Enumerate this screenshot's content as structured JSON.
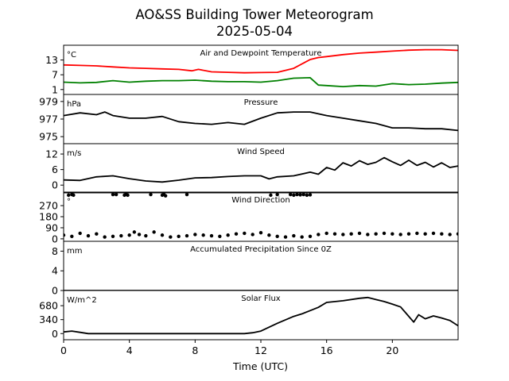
{
  "title_line1": "AO&SS Building Tower Meteorogram",
  "title_line2": "2025-05-04",
  "xlabel": "Time (UTC)",
  "x_ticks": [
    0,
    4,
    8,
    12,
    16,
    20
  ],
  "chart_data": [
    {
      "type": "line",
      "title": "Air and Dewpoint Temperature",
      "unit": "°C",
      "ylim": [
        -1,
        19
      ],
      "yticks": [
        1,
        7,
        13
      ],
      "xlim": [
        0,
        24
      ],
      "series": [
        {
          "color": "#ff0000",
          "x": [
            0,
            1,
            2,
            3,
            4,
            5,
            6,
            7,
            7.8,
            8.2,
            9,
            10,
            11,
            12,
            13,
            14,
            15,
            15.5,
            16,
            17,
            18,
            19,
            20,
            21,
            22,
            23,
            24
          ],
          "y": [
            11,
            10.8,
            10.6,
            10.2,
            9.8,
            9.6,
            9.4,
            9.2,
            8.6,
            9.2,
            8.2,
            8.0,
            7.8,
            7.9,
            8.0,
            9.6,
            13.2,
            14.0,
            14.4,
            15.2,
            15.8,
            16.2,
            16.6,
            17.0,
            17.2,
            17.2,
            16.9
          ]
        },
        {
          "color": "#008000",
          "x": [
            0,
            1,
            2,
            3,
            4,
            5,
            6,
            7,
            8,
            9,
            10,
            11,
            12,
            13,
            14,
            15,
            15.5,
            16,
            17,
            18,
            19,
            20,
            21,
            22,
            23,
            24
          ],
          "y": [
            4.0,
            3.7,
            3.9,
            4.6,
            4.0,
            4.4,
            4.6,
            4.6,
            4.8,
            4.4,
            4.2,
            4.2,
            4.0,
            4.6,
            5.6,
            5.8,
            2.8,
            2.6,
            2.2,
            2.6,
            2.4,
            3.4,
            3.0,
            3.2,
            3.6,
            3.9
          ]
        }
      ]
    },
    {
      "type": "line",
      "title": "Pressure",
      "unit": "hPa",
      "ylim": [
        974.2,
        979.8
      ],
      "yticks": [
        975,
        977,
        979
      ],
      "xlim": [
        0,
        24
      ],
      "series": [
        {
          "color": "#000000",
          "x": [
            0,
            1,
            2,
            2.5,
            3,
            4,
            5,
            6,
            7,
            8,
            9,
            10,
            11,
            12,
            13,
            14,
            15,
            16,
            17,
            18,
            19,
            20,
            21,
            22,
            23,
            24
          ],
          "y": [
            977.4,
            977.7,
            977.5,
            977.8,
            977.4,
            977.1,
            977.1,
            977.3,
            976.7,
            976.5,
            976.4,
            976.6,
            976.4,
            977.1,
            977.7,
            977.8,
            977.8,
            977.4,
            977.1,
            976.8,
            976.5,
            976.0,
            976.0,
            975.9,
            975.9,
            975.7
          ]
        }
      ]
    },
    {
      "type": "line",
      "title": "Wind Speed",
      "unit": "m/s",
      "ylim": [
        -3,
        16
      ],
      "yticks": [
        0,
        6,
        12
      ],
      "xlim": [
        0,
        24
      ],
      "series": [
        {
          "color": "#000000",
          "x": [
            0,
            1,
            2,
            3,
            4,
            5,
            6,
            7,
            8,
            9,
            10,
            11,
            12,
            12.5,
            13,
            14,
            15,
            15.5,
            16,
            16.5,
            17,
            17.5,
            18,
            18.5,
            19,
            19.5,
            20,
            20.5,
            21,
            21.5,
            22,
            22.5,
            23,
            23.5,
            24
          ],
          "y": [
            2.0,
            1.8,
            3.2,
            3.6,
            2.5,
            1.6,
            1.2,
            1.9,
            2.8,
            2.9,
            3.3,
            3.6,
            3.6,
            2.4,
            3.2,
            3.6,
            5.0,
            4.2,
            6.8,
            5.8,
            8.6,
            7.4,
            9.4,
            8.0,
            8.8,
            10.6,
            9.0,
            7.6,
            9.6,
            7.6,
            8.8,
            7.0,
            8.6,
            6.8,
            7.4
          ]
        }
      ]
    },
    {
      "type": "scatter",
      "title": "Wind Direction",
      "unit": "°",
      "ylim": [
        -20,
        380
      ],
      "yticks": [
        0,
        90,
        180,
        270
      ],
      "xlim": [
        0,
        24
      ],
      "series": [
        {
          "color": "#000000",
          "x": [
            0,
            0.5,
            1,
            1.5,
            2,
            2.5,
            3,
            3.5,
            4,
            4.3,
            4.6,
            5,
            5.5,
            6,
            6.5,
            7,
            7.5,
            8,
            8.5,
            9,
            9.5,
            10,
            10.5,
            11,
            11.5,
            12,
            12.5,
            13,
            13.5,
            14,
            14.5,
            15,
            15.5,
            16,
            16.5,
            17,
            17.5,
            18,
            18.5,
            19,
            19.5,
            20,
            20.5,
            21,
            21.5,
            22,
            22.5,
            23,
            23.5,
            24
          ],
          "y": [
            30,
            20,
            45,
            25,
            40,
            15,
            20,
            25,
            30,
            55,
            35,
            25,
            55,
            30,
            15,
            20,
            25,
            35,
            30,
            25,
            20,
            30,
            40,
            45,
            35,
            50,
            30,
            20,
            15,
            25,
            15,
            20,
            35,
            45,
            40,
            35,
            40,
            45,
            35,
            40,
            45,
            40,
            35,
            40,
            45,
            40,
            45,
            40,
            35,
            40
          ]
        },
        {
          "color": "#000000",
          "x": [
            0.3,
            0.5,
            0.6,
            3.0,
            3.2,
            3.7,
            3.8,
            3.9,
            5.3,
            6.0,
            6.1,
            6.2,
            7.5,
            12.6,
            13.0,
            13.8,
            14.0,
            14.2,
            14.4,
            14.6,
            14.8,
            15.0
          ],
          "y": [
            355,
            360,
            355,
            360,
            360,
            355,
            360,
            355,
            360,
            355,
            360,
            350,
            360,
            355,
            360,
            360,
            355,
            360,
            358,
            360,
            355,
            358
          ]
        }
      ]
    },
    {
      "type": "line",
      "title": "Accumulated Precipitation Since 0Z",
      "unit": "mm",
      "ylim": [
        0,
        10
      ],
      "yticks": [
        0,
        4,
        8
      ],
      "xlim": [
        0,
        24
      ],
      "series": [
        {
          "color": "#000000",
          "x": [
            0,
            24
          ],
          "y": [
            0,
            0
          ]
        }
      ]
    },
    {
      "type": "line",
      "title": "Solar Flux",
      "unit": "W/m^2",
      "ylim": [
        -150,
        1050
      ],
      "yticks": [
        0,
        340,
        680
      ],
      "xlim": [
        0,
        24
      ],
      "series": [
        {
          "color": "#000000",
          "x": [
            0,
            0.5,
            1,
            1.5,
            11,
            11.5,
            12,
            13,
            14,
            14.5,
            15,
            15.5,
            16,
            17,
            18,
            18.5,
            19,
            19.5,
            20,
            20.5,
            21,
            21.3,
            21.6,
            22,
            22.5,
            23,
            23.5,
            24
          ],
          "y": [
            40,
            60,
            30,
            0,
            0,
            20,
            60,
            250,
            420,
            480,
            560,
            640,
            760,
            800,
            860,
            880,
            830,
            780,
            720,
            650,
            420,
            280,
            460,
            360,
            430,
            380,
            320,
            190
          ]
        }
      ]
    }
  ]
}
